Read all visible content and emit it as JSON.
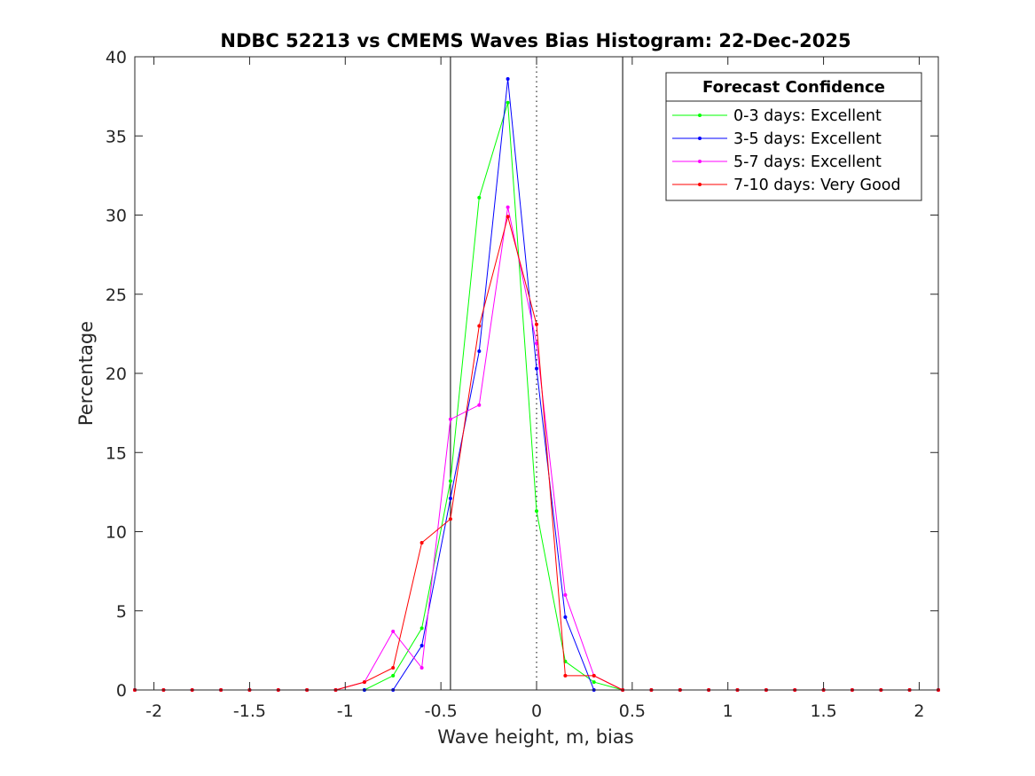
{
  "chart_data": {
    "type": "line",
    "title": "NDBC 52213 vs CMEMS Waves Bias Histogram: 22-Dec-2025",
    "xlabel": "Wave height, m, bias",
    "ylabel": "Percentage",
    "xlim": [
      -2.1,
      2.1
    ],
    "ylim": [
      0,
      40
    ],
    "xticks": [
      -2,
      -1.5,
      -1,
      -0.5,
      0,
      0.5,
      1,
      1.5,
      2
    ],
    "xtick_labels": [
      "-2",
      "-1.5",
      "-1",
      "-0.5",
      "0",
      "0.5",
      "1",
      "1.5",
      "2"
    ],
    "yticks": [
      0,
      5,
      10,
      15,
      20,
      25,
      30,
      35,
      40
    ],
    "ytick_labels": [
      "0",
      "5",
      "10",
      "15",
      "20",
      "25",
      "30",
      "35",
      "40"
    ],
    "grid": false,
    "vertical_lines": [
      {
        "x": -0.45,
        "style": "solid",
        "color": "#000000"
      },
      {
        "x": 0,
        "style": "dotted",
        "color": "#000000"
      },
      {
        "x": 0.45,
        "style": "solid",
        "color": "#000000"
      }
    ],
    "x": [
      -2.1,
      -1.95,
      -1.8,
      -1.65,
      -1.5,
      -1.35,
      -1.2,
      -1.05,
      -0.9,
      -0.75,
      -0.6,
      -0.45,
      -0.3,
      -0.15,
      0,
      0.15,
      0.3,
      0.45,
      0.6,
      0.75,
      0.9,
      1.05,
      1.2,
      1.35,
      1.5,
      1.65,
      1.8,
      1.95,
      2.1
    ],
    "series": [
      {
        "name": "0-3 days: Excellent",
        "color": "#00ff00",
        "values": [
          0,
          0,
          0,
          0,
          0,
          0,
          0,
          0,
          0,
          0.9,
          3.9,
          13.2,
          31.1,
          37.1,
          11.3,
          1.8,
          0.5,
          0,
          0,
          0,
          0,
          0,
          0,
          0,
          0,
          0,
          0,
          0,
          0
        ]
      },
      {
        "name": "3-5 days: Excellent",
        "color": "#0000ff",
        "values": [
          0,
          0,
          0,
          0,
          0,
          0,
          0,
          0,
          0,
          0,
          2.8,
          12.1,
          21.4,
          38.6,
          20.3,
          4.6,
          0,
          0,
          0,
          0,
          0,
          0,
          0,
          0,
          0,
          0,
          0,
          0,
          0
        ]
      },
      {
        "name": "5-7 days: Excellent",
        "color": "#ff00ff",
        "values": [
          0,
          0,
          0,
          0,
          0,
          0,
          0,
          0,
          0.5,
          3.7,
          1.4,
          17.1,
          18.0,
          30.5,
          21.9,
          6.0,
          0.9,
          0,
          0,
          0,
          0,
          0,
          0,
          0,
          0,
          0,
          0,
          0,
          0
        ]
      },
      {
        "name": "7-10 days: Very Good",
        "color": "#ff0000",
        "values": [
          0,
          0,
          0,
          0,
          0,
          0,
          0,
          0,
          0.5,
          1.4,
          9.3,
          10.8,
          23.0,
          29.9,
          23.1,
          0.9,
          0.9,
          0,
          0,
          0,
          0,
          0,
          0,
          0,
          0,
          0,
          0,
          0,
          0
        ]
      }
    ],
    "legend": {
      "title": "Forecast Confidence",
      "placement": "top-right"
    }
  }
}
